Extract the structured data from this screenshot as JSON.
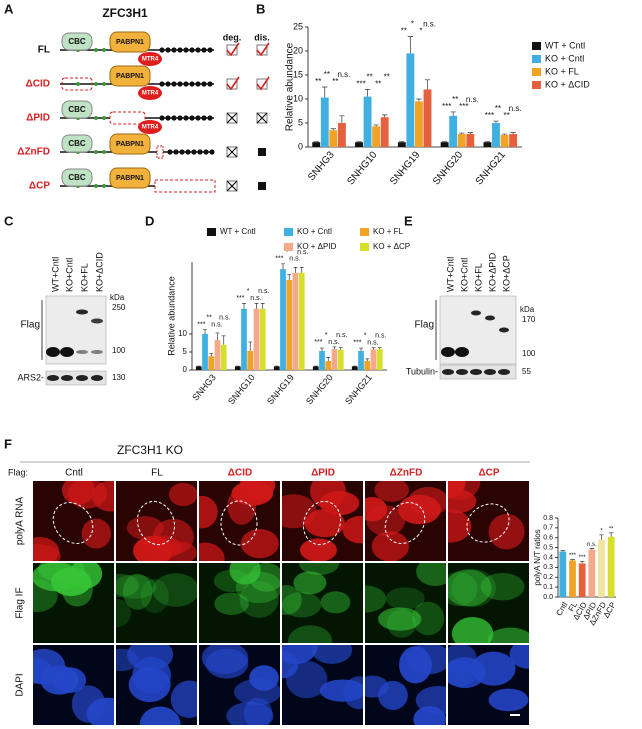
{
  "panel_labels": [
    "A",
    "B",
    "C",
    "D",
    "E",
    "F"
  ],
  "panel_a": {
    "title": "ZFC3H1",
    "columns": [
      "deg.",
      "dis."
    ],
    "domains": [
      "CBC",
      "PABPN1",
      "MTR4"
    ],
    "rows": [
      "FL",
      "ΔCID",
      "ΔPID",
      "ΔZnFD",
      "ΔCP"
    ]
  },
  "chart_data": [
    {
      "type": "bar",
      "y_label": "Relative abundance",
      "categories": [
        "SNHG3",
        "SNHG10",
        "SNHG19",
        "SNHG20",
        "SNHG21"
      ],
      "series": [
        {
          "name": "WT + Cntl",
          "color": "#111111",
          "values": [
            1,
            1,
            1,
            1,
            1
          ],
          "errors": [
            0.1,
            0.1,
            0.1,
            0.1,
            0.1
          ]
        },
        {
          "name": "KO + Cntl",
          "color": "#3fb0e0",
          "values": [
            10.3,
            10.5,
            19.5,
            6.5,
            5
          ],
          "errors": [
            2.2,
            1.5,
            3.5,
            0.8,
            0.4
          ]
        },
        {
          "name": "KO + FL",
          "color": "#f0a326",
          "values": [
            3.5,
            4.3,
            9.5,
            2.7,
            2.5
          ],
          "errors": [
            0.3,
            0.3,
            0.5,
            0.2,
            0.2
          ]
        },
        {
          "name": "KO + ΔCID",
          "color": "#e5603e",
          "values": [
            5,
            6.2,
            12,
            2.7,
            2.7
          ],
          "errors": [
            1.5,
            0.5,
            2,
            0.3,
            0.3
          ]
        }
      ],
      "annotations": [
        [
          "**",
          "**",
          "**",
          "n.s."
        ],
        [
          "***",
          "**",
          "**",
          "**"
        ],
        [
          "**",
          "*",
          "*",
          "n.s."
        ],
        [
          "***",
          "**",
          "***",
          "n.s."
        ],
        [
          "***",
          "**",
          "**",
          "n.s."
        ]
      ],
      "ylim": [
        0,
        25
      ],
      "yticks": [
        0,
        5,
        10,
        15,
        20,
        25
      ]
    },
    {
      "type": "bar",
      "y_label": "Relative abundance",
      "categories": [
        "SNHG3",
        "SNHG10",
        "SNHG19",
        "SNHG20",
        "SNHG21"
      ],
      "series": [
        {
          "name": "WT + Cntl",
          "color": "#111111",
          "values": [
            1,
            1,
            1,
            1,
            1
          ],
          "errors": [
            0.1,
            0.1,
            0.1,
            0.1,
            0.1
          ]
        },
        {
          "name": "KO + Cntl",
          "color": "#3fb0e0",
          "values": [
            10,
            17,
            28,
            5.3,
            5.3
          ],
          "errors": [
            1.2,
            1.5,
            1.5,
            0.8,
            0.8
          ]
        },
        {
          "name": "KO + FL",
          "color": "#f0a326",
          "values": [
            3.8,
            5.3,
            25,
            2.5,
            2.5
          ],
          "errors": [
            0.8,
            2.5,
            1.5,
            1,
            0.6
          ]
        },
        {
          "name": "KO + ΔPID",
          "color": "#f4a98a",
          "values": [
            8.3,
            17,
            27,
            5.8,
            5.7
          ],
          "errors": [
            2,
            1.5,
            1.5,
            0.6,
            0.5
          ]
        },
        {
          "name": "KO + ΔCP",
          "color": "#d6e02a",
          "values": [
            7,
            17,
            27,
            5.6,
            5.8
          ],
          "errors": [
            2.5,
            1.5,
            1.5,
            0.6,
            0.4
          ]
        }
      ],
      "annotations": [
        [
          "***",
          "**",
          "n.s.",
          "n.s."
        ],
        [
          "***",
          "*",
          "n.s.",
          "n.s."
        ],
        [
          "***",
          "*",
          "n.s.",
          "n.s."
        ],
        [
          "***",
          "*",
          "n.s.",
          "n.s."
        ],
        [
          "***",
          "*",
          "n.s.",
          "n.s."
        ]
      ],
      "ylim": [
        0,
        30
      ],
      "yticks": [
        0,
        5,
        10
      ]
    },
    {
      "type": "bar",
      "y_label": "polyA N/T ratios",
      "categories": [
        "Cntl",
        "FL",
        "ΔCID",
        "ΔPID",
        "ΔZnFD",
        "ΔCP"
      ],
      "values": [
        0.46,
        0.37,
        0.34,
        0.48,
        0.58,
        0.61
      ],
      "errors": [
        0.01,
        0.01,
        0.02,
        0.01,
        0.05,
        0.04
      ],
      "colors": [
        "#3fb0e0",
        "#f0a326",
        "#e5603e",
        "#f4a98a",
        "#f1e4a0",
        "#d6e02a"
      ],
      "annotations": [
        null,
        "***",
        "***",
        "n.s.",
        "*",
        "**"
      ],
      "ylim": [
        0,
        0.8
      ],
      "yticks": [
        {
          "value": 0,
          "label": "0.0"
        },
        {
          "value": 0.1,
          "label": "0.1"
        },
        {
          "value": 0.2,
          "label": "0.2"
        },
        {
          "value": 0.3,
          "label": "0.3"
        },
        {
          "value": 0.4,
          "label": "0.4"
        },
        {
          "value": 0.5,
          "label": "0.5"
        },
        {
          "value": 0.6,
          "label": "0.6"
        },
        {
          "value": 0.7,
          "label": "0.7"
        },
        {
          "value": 0.8,
          "label": "0.8"
        }
      ]
    }
  ],
  "panel_c": {
    "lanes": [
      "WT+Cntl",
      "KO+Cntl",
      "KO+FL",
      "KO+ΔCID"
    ],
    "unit": "kDa",
    "markers": [
      "250",
      "100",
      "130"
    ],
    "rows": [
      "Flag",
      "ARS2-"
    ]
  },
  "panel_e": {
    "lanes": [
      "WT+Cntl",
      "KO+Cntl",
      "KO+FL",
      "KO+ΔPID",
      "KO+ΔCP"
    ],
    "unit": "kDa",
    "markers": [
      "170",
      "100",
      "55"
    ],
    "rows": [
      "Flag",
      "Tubulin-"
    ]
  },
  "panel_f": {
    "title": "ZFC3H1 KO",
    "flag_label": "Flag:",
    "columns": [
      "Cntl",
      "FL",
      "ΔCID",
      "ΔPID",
      "ΔZnFD",
      "ΔCP"
    ],
    "rows": [
      "polyA RNA",
      "Flag IF",
      "DAPI"
    ]
  }
}
